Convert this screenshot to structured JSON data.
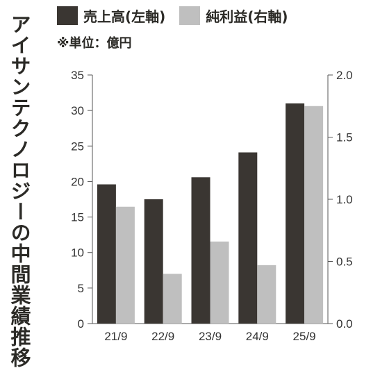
{
  "vertical_title": "アイサンテクノロジーの中間業績推移",
  "legend": {
    "series1": "売上高(左軸)",
    "series2": "純利益(右軸)"
  },
  "unit_note": "※単位：億円",
  "colors": {
    "series1": "#3a3632",
    "series2": "#bfbfbf",
    "axis": "#555555"
  },
  "chart_data": {
    "type": "bar",
    "categories": [
      "21/9",
      "22/9",
      "23/9",
      "24/9",
      "25/9"
    ],
    "series": [
      {
        "name": "売上高(左軸)",
        "axis": "left",
        "values": [
          19.6,
          17.5,
          20.6,
          24.1,
          31.0
        ]
      },
      {
        "name": "純利益(右軸)",
        "axis": "right",
        "values": [
          0.94,
          0.4,
          0.66,
          0.47,
          1.75
        ]
      }
    ],
    "y_left": {
      "min": 0,
      "max": 35,
      "ticks": [
        "0",
        "5",
        "10",
        "15",
        "20",
        "25",
        "30",
        "35"
      ]
    },
    "y_right": {
      "min": 0,
      "max": 2.0,
      "ticks": [
        "0.0",
        "0.5",
        "1.0",
        "1.5",
        "2.0"
      ]
    },
    "grid": false,
    "legend_position": "top"
  }
}
